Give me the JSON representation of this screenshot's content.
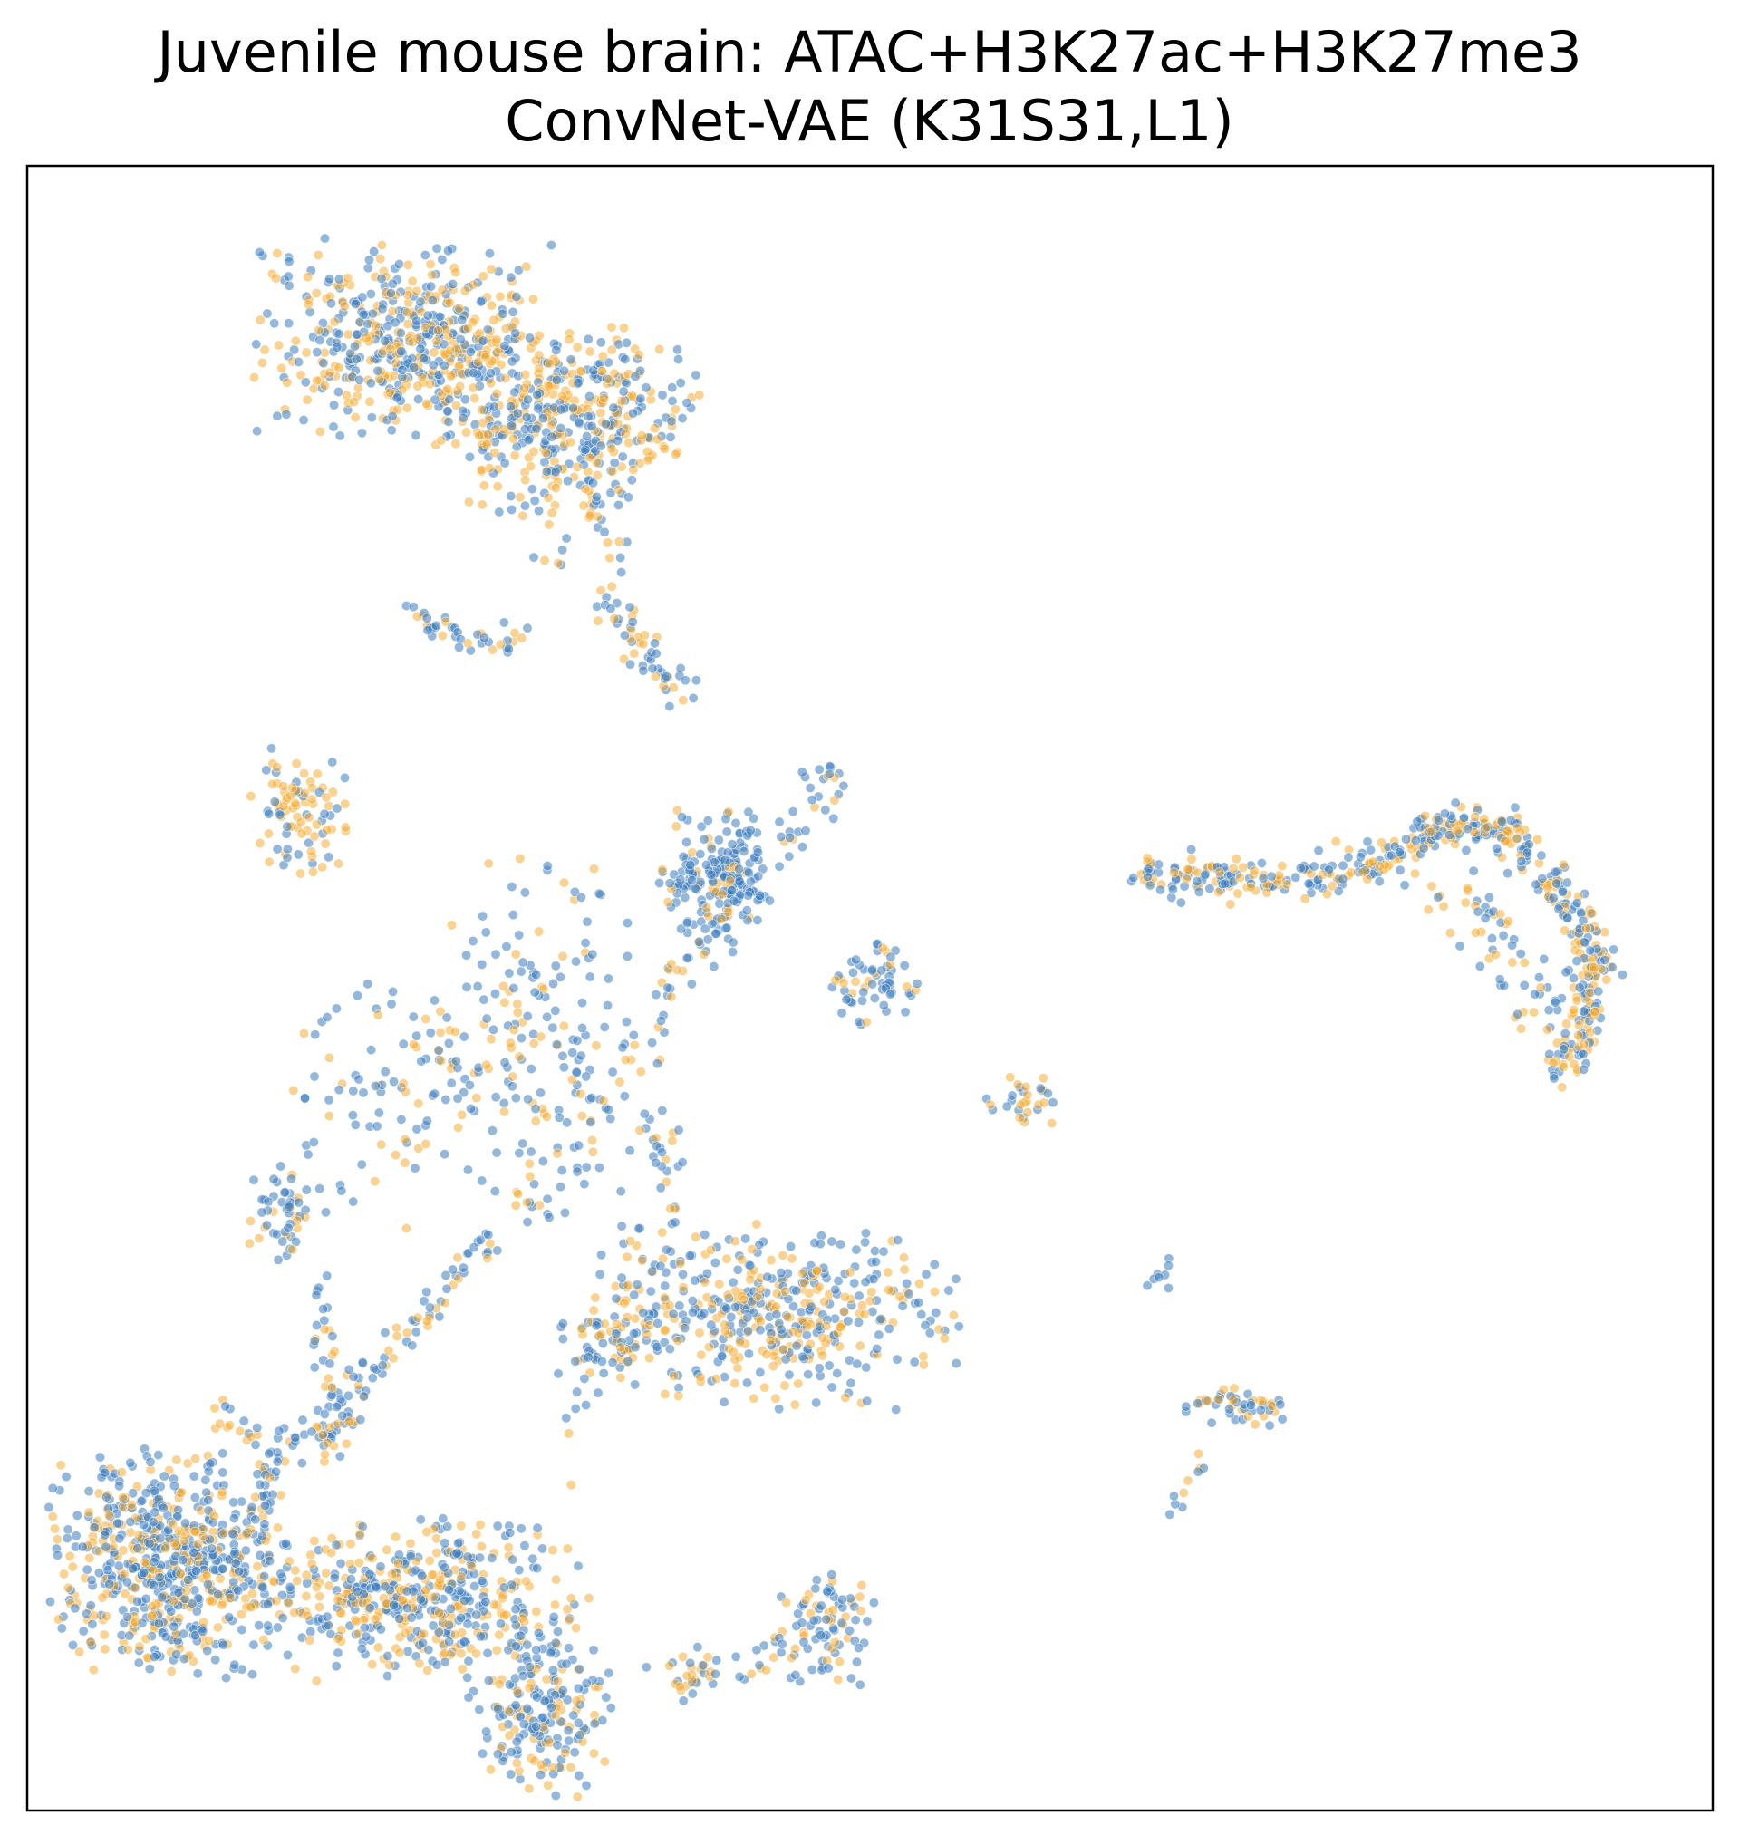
{
  "chart_data": {
    "type": "scatter",
    "title": "Juvenile mouse brain: ATAC+H3K27ac+H3K27me3",
    "subtitle": "ConvNet-VAE (K31S31,L1)",
    "xlabel": "",
    "ylabel": "",
    "xlim": [
      0,
      100
    ],
    "ylim": [
      0,
      100
    ],
    "axis_ticks": false,
    "grid": false,
    "legend": "none",
    "series": [
      {
        "color": "#F5A623",
        "opacity": 0.5
      },
      {
        "color": "#3D7DBF",
        "opacity": 0.55
      }
    ],
    "clusters": [
      {
        "x": 22.6,
        "y": 89.5,
        "sx": 4.2,
        "sy": 2.8,
        "n": 520,
        "orange_frac": 0.45
      },
      {
        "x": 32.0,
        "y": 84.6,
        "sx": 3.6,
        "sy": 2.6,
        "n": 420,
        "orange_frac": 0.5
      },
      {
        "x": 16.4,
        "y": 60.8,
        "sx": 1.5,
        "sy": 1.8,
        "n": 90,
        "orange_frac": 0.7
      },
      {
        "x": 40.8,
        "y": 56.5,
        "sx": 1.5,
        "sy": 2.0,
        "n": 180,
        "orange_frac": 0.2
      },
      {
        "x": 50.3,
        "y": 50.2,
        "sx": 1.2,
        "sy": 1.2,
        "n": 60,
        "orange_frac": 0.25
      },
      {
        "x": 59.3,
        "y": 43.1,
        "sx": 1.1,
        "sy": 0.7,
        "n": 30,
        "orange_frac": 0.5
      },
      {
        "x": 45.0,
        "y": 30.0,
        "sx": 4.8,
        "sy": 2.6,
        "n": 420,
        "orange_frac": 0.4
      },
      {
        "x": 15.0,
        "y": 35.9,
        "sx": 0.9,
        "sy": 1.6,
        "n": 50,
        "orange_frac": 0.3
      },
      {
        "x": 34.5,
        "y": 28.8,
        "sx": 1.4,
        "sy": 1.3,
        "n": 60,
        "orange_frac": 0.3
      },
      {
        "x": 8.5,
        "y": 15.0,
        "sx": 3.3,
        "sy": 3.2,
        "n": 650,
        "orange_frac": 0.35
      },
      {
        "x": 23.0,
        "y": 12.8,
        "sx": 4.8,
        "sy": 2.3,
        "n": 420,
        "orange_frac": 0.45
      },
      {
        "x": 30.5,
        "y": 6.3,
        "sx": 2.0,
        "sy": 2.5,
        "n": 200,
        "orange_frac": 0.3
      },
      {
        "x": 47.2,
        "y": 11.1,
        "sx": 1.4,
        "sy": 1.6,
        "n": 90,
        "orange_frac": 0.3
      },
      {
        "x": 39.3,
        "y": 8.3,
        "sx": 1.3,
        "sy": 0.8,
        "n": 30,
        "orange_frac": 0.5
      },
      {
        "x": 71.6,
        "y": 24.6,
        "sx": 1.6,
        "sy": 0.6,
        "n": 50,
        "orange_frac": 0.45
      },
      {
        "x": 67.2,
        "y": 32.3,
        "sx": 0.4,
        "sy": 0.6,
        "n": 8,
        "orange_frac": 0.1
      },
      {
        "x": 68.0,
        "y": 18.6,
        "sx": 0.3,
        "sy": 0.3,
        "n": 4,
        "orange_frac": 0.2
      },
      {
        "x": 30.5,
        "y": 47.0,
        "sx": 3.5,
        "sy": 5.0,
        "n": 160,
        "orange_frac": 0.3
      },
      {
        "x": 23.0,
        "y": 43.0,
        "sx": 4.0,
        "sy": 4.0,
        "n": 100,
        "orange_frac": 0.4
      }
    ],
    "paths": [
      {
        "points": [
          [
            22.5,
            72.7
          ],
          [
            26.0,
            71.3
          ],
          [
            28.5,
            70.8
          ],
          [
            29.2,
            71.8
          ]
        ],
        "n": 40,
        "spread": 0.5,
        "orange_frac": 0.3
      },
      {
        "points": [
          [
            34.3,
            73.6
          ],
          [
            36.0,
            71.0
          ],
          [
            38.0,
            68.8
          ],
          [
            39.4,
            68.1
          ]
        ],
        "n": 50,
        "spread": 0.6,
        "orange_frac": 0.4
      },
      {
        "points": [
          [
            31.2,
            81.9
          ],
          [
            33.5,
            80.0
          ],
          [
            35.0,
            76.0
          ],
          [
            34.4,
            74.5
          ]
        ],
        "n": 25,
        "spread": 0.5,
        "orange_frac": 0.4
      },
      {
        "points": [
          [
            48.0,
            63.9
          ],
          [
            46.5,
            60.5
          ],
          [
            43.5,
            58.0
          ],
          [
            40.6,
            53.4
          ],
          [
            36.5,
            47.7
          ],
          [
            33.5,
            41.0
          ],
          [
            30.0,
            36.0
          ]
        ],
        "n": 120,
        "spread": 0.7,
        "orange_frac": 0.3
      },
      {
        "points": [
          [
            27.2,
            35.0
          ],
          [
            24.5,
            31.0
          ],
          [
            21.0,
            27.5
          ],
          [
            18.8,
            25.4
          ]
        ],
        "n": 60,
        "spread": 0.5,
        "orange_frac": 0.4
      },
      {
        "points": [
          [
            17.0,
            31.2
          ],
          [
            18.0,
            27.0
          ],
          [
            18.8,
            23.5
          ],
          [
            17.5,
            21.5
          ]
        ],
        "n": 45,
        "spread": 0.5,
        "orange_frac": 0.3
      },
      {
        "points": [
          [
            19.8,
            24.2
          ],
          [
            16.5,
            22.8
          ],
          [
            14.0,
            21.8
          ],
          [
            11.5,
            24.3
          ]
        ],
        "n": 55,
        "spread": 0.6,
        "orange_frac": 0.4
      },
      {
        "points": [
          [
            14.5,
            21.0
          ],
          [
            13.8,
            18.5
          ],
          [
            12.5,
            16.5
          ]
        ],
        "n": 30,
        "spread": 0.6,
        "orange_frac": 0.3
      },
      {
        "points": [
          [
            18.0,
            13.5
          ],
          [
            21.0,
            13.2
          ],
          [
            24.0,
            13.0
          ]
        ],
        "n": 60,
        "spread": 0.7,
        "orange_frac": 0.5
      },
      {
        "points": [
          [
            32.0,
            21.0
          ],
          [
            33.5,
            26.5
          ],
          [
            35.0,
            32.0
          ],
          [
            36.5,
            36.0
          ]
        ],
        "n": 30,
        "spread": 0.8,
        "orange_frac": 0.5
      },
      {
        "points": [
          [
            37.0,
            43.0
          ],
          [
            38.0,
            38.0
          ],
          [
            38.5,
            35.0
          ],
          [
            37.0,
            31.0
          ]
        ],
        "n": 35,
        "spread": 0.7,
        "orange_frac": 0.3
      },
      {
        "points": [
          [
            66.2,
            56.8
          ],
          [
            72.0,
            56.5
          ],
          [
            78.0,
            56.8
          ],
          [
            81.5,
            58.5
          ],
          [
            85.0,
            60.0
          ],
          [
            88.0,
            59.5
          ],
          [
            91.0,
            56.0
          ],
          [
            93.0,
            52.0
          ],
          [
            92.5,
            48.0
          ],
          [
            91.0,
            44.8
          ]
        ],
        "n": 520,
        "spread": 0.6,
        "orange_frac": 0.4
      },
      {
        "points": [
          [
            85.0,
            55.5
          ],
          [
            88.0,
            52.0
          ],
          [
            90.5,
            48.0
          ]
        ],
        "n": 60,
        "spread": 1.4,
        "orange_frac": 0.45
      },
      {
        "points": [
          [
            69.8,
            21.5
          ],
          [
            68.8,
            19.8
          ],
          [
            68.2,
            18.8
          ]
        ],
        "n": 6,
        "spread": 0.2,
        "orange_frac": 0.6
      },
      {
        "points": [
          [
            42.0,
            8.3
          ],
          [
            44.5,
            9.5
          ],
          [
            46.0,
            10.5
          ]
        ],
        "n": 10,
        "spread": 0.4,
        "orange_frac": 0.4
      },
      {
        "points": [
          [
            32.0,
            75.0
          ],
          [
            31.0,
            77.5
          ],
          [
            30.5,
            80.0
          ]
        ],
        "n": 12,
        "spread": 0.7,
        "orange_frac": 0.7
      }
    ]
  }
}
